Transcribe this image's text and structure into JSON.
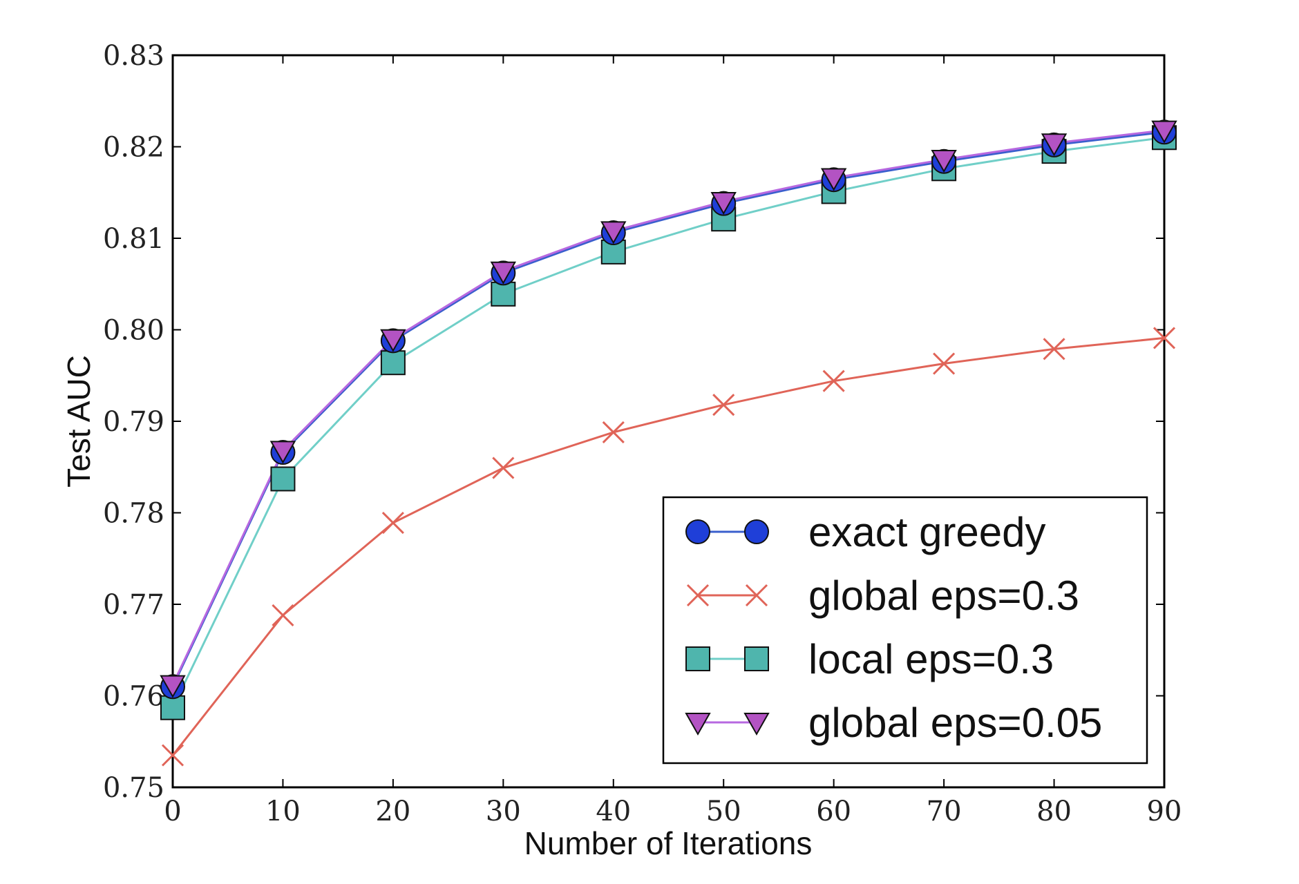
{
  "chart_data": {
    "type": "line",
    "title": "",
    "xlabel": "Number of Iterations",
    "ylabel": "Test AUC",
    "xlim": [
      0,
      90
    ],
    "ylim": [
      0.75,
      0.83
    ],
    "xticks": [
      "0",
      "10",
      "20",
      "30",
      "40",
      "50",
      "60",
      "70",
      "80",
      "90"
    ],
    "yticks": [
      "0.75",
      "0.76",
      "0.77",
      "0.78",
      "0.79",
      "0.80",
      "0.81",
      "0.82",
      "0.83"
    ],
    "grid": false,
    "legend_position": "lower-right",
    "x": [
      0,
      10,
      20,
      30,
      40,
      50,
      60,
      70,
      80,
      90
    ],
    "series": [
      {
        "name": "exact greedy",
        "marker": "circle",
        "color": "#3a5fcd",
        "marker_color": "#1f3fd8",
        "values": [
          0.761,
          0.7866,
          0.7988,
          0.8062,
          0.8106,
          0.8138,
          0.8164,
          0.8184,
          0.8202,
          0.8216
        ]
      },
      {
        "name": "global eps=0.3",
        "marker": "x",
        "color": "#e06458",
        "marker_color": "#e06458",
        "values": [
          0.7535,
          0.7688,
          0.7789,
          0.7849,
          0.7888,
          0.7918,
          0.7944,
          0.7963,
          0.7979,
          0.7991
        ]
      },
      {
        "name": "local eps=0.3",
        "marker": "square",
        "color": "#70cfc8",
        "marker_color": "#4fb5ad",
        "values": [
          0.7587,
          0.7837,
          0.7964,
          0.8039,
          0.8085,
          0.8121,
          0.8151,
          0.8176,
          0.8195,
          0.821
        ]
      },
      {
        "name": "global eps=0.05",
        "marker": "triangle-down",
        "color": "#b768e0",
        "marker_color": "#b353c3",
        "values": [
          0.7612,
          0.7868,
          0.799,
          0.8064,
          0.8108,
          0.814,
          0.8166,
          0.8186,
          0.8204,
          0.8218
        ]
      }
    ]
  }
}
